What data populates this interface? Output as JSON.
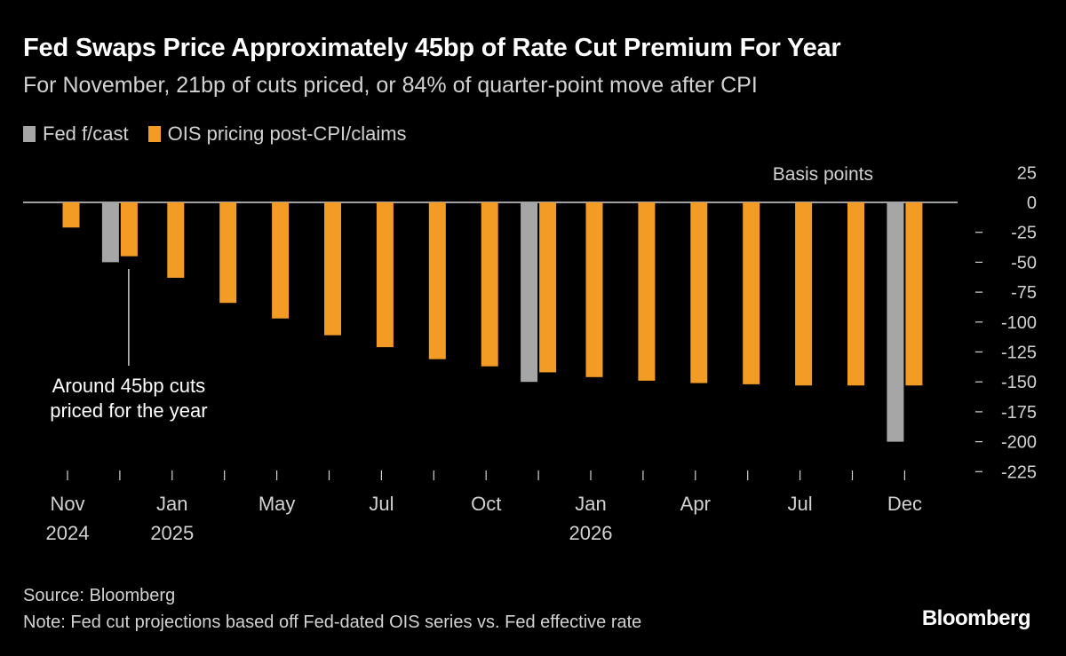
{
  "header": {
    "title": "Fed Swaps Price Approximately 45bp of Rate Cut Premium For Year",
    "subtitle": "For November, 21bp of cuts priced, or 84% of quarter-point move after CPI"
  },
  "legend": [
    {
      "label": "Fed f/cast",
      "color": "#a6a6a6"
    },
    {
      "label": "OIS pricing post-CPI/claims",
      "color": "#f39c25"
    }
  ],
  "footer": {
    "source": "Source: Bloomberg",
    "note": "Note: Fed cut projections based off Fed-dated OIS series vs. Fed effective rate",
    "logo": "Bloomberg"
  },
  "chart_data": {
    "type": "bar",
    "title": "Fed Swaps Price Approximately 45bp of Rate Cut Premium For Year",
    "subtitle": "For November, 21bp of cuts priced, or 84% of quarter-point move after CPI",
    "ylabel": "Basis points",
    "ylim": [
      -225,
      25
    ],
    "yticks": [
      25,
      0,
      -25,
      -50,
      -75,
      -100,
      -125,
      -150,
      -175,
      -200,
      -225
    ],
    "grid": false,
    "legend_position": "top-left",
    "x_tick_labels": [
      {
        "line1": "Nov",
        "line2": "2024"
      },
      {
        "line1": "",
        "line2": ""
      },
      {
        "line1": "Jan",
        "line2": "2025"
      },
      {
        "line1": "",
        "line2": ""
      },
      {
        "line1": "May",
        "line2": ""
      },
      {
        "line1": "",
        "line2": ""
      },
      {
        "line1": "Jul",
        "line2": ""
      },
      {
        "line1": "",
        "line2": ""
      },
      {
        "line1": "Oct",
        "line2": ""
      },
      {
        "line1": "",
        "line2": ""
      },
      {
        "line1": "Jan",
        "line2": "2026"
      },
      {
        "line1": "",
        "line2": ""
      },
      {
        "line1": "Apr",
        "line2": ""
      },
      {
        "line1": "",
        "line2": ""
      },
      {
        "line1": "Jul",
        "line2": ""
      },
      {
        "line1": "",
        "line2": ""
      },
      {
        "line1": "Dec",
        "line2": ""
      }
    ],
    "series": [
      {
        "name": "Fed f/cast",
        "color": "#a6a6a6",
        "values": [
          null,
          -50,
          null,
          null,
          null,
          null,
          null,
          null,
          null,
          -150,
          null,
          null,
          null,
          null,
          null,
          null,
          -200
        ]
      },
      {
        "name": "OIS pricing post-CPI/claims",
        "color": "#f39c25",
        "values": [
          -21,
          -45,
          -63,
          -84,
          -97,
          -111,
          -121,
          -131,
          -137,
          -142,
          -146,
          -149,
          -151,
          -152,
          -153,
          -153,
          -153
        ]
      }
    ],
    "annotation": {
      "text_line1": "Around 45bp cuts",
      "text_line2": "priced for the year",
      "points_to_index": 1
    }
  }
}
